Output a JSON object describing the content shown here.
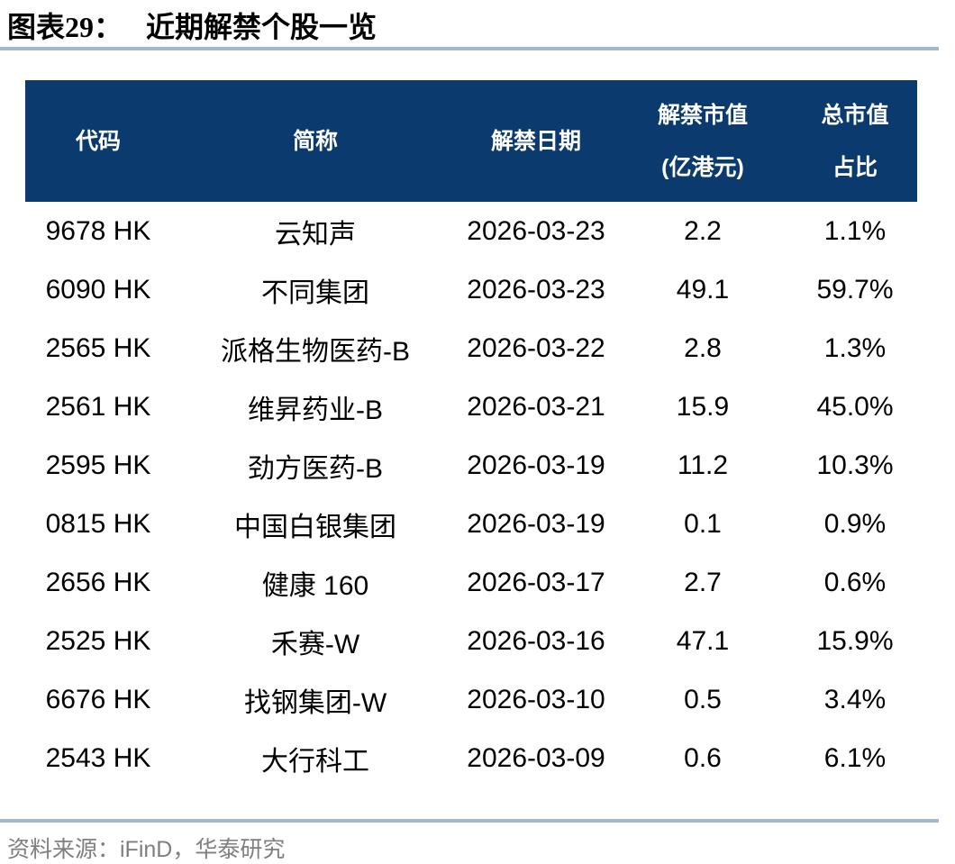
{
  "figure": {
    "label": "图表29：",
    "title": "近期解禁个股一览"
  },
  "table": {
    "columns": [
      {
        "key": "code",
        "label": "代码"
      },
      {
        "key": "name",
        "label": "简称"
      },
      {
        "key": "unlock_date",
        "label": "解禁日期"
      },
      {
        "key": "unlock_value",
        "label": "解禁市值",
        "label2": "(亿港元)"
      },
      {
        "key": "mktcap_pct",
        "label": "总市值",
        "label2": "占比"
      }
    ],
    "rows": [
      [
        "9678 HK",
        "云知声",
        "2026-03-23",
        "2.2",
        "1.1%"
      ],
      [
        "6090 HK",
        "不同集团",
        "2026-03-23",
        "49.1",
        "59.7%"
      ],
      [
        "2565 HK",
        "派格生物医药-B",
        "2026-03-22",
        "2.8",
        "1.3%"
      ],
      [
        "2561 HK",
        "维昇药业-B",
        "2026-03-21",
        "15.9",
        "45.0%"
      ],
      [
        "2595 HK",
        "劲方医药-B",
        "2026-03-19",
        "11.2",
        "10.3%"
      ],
      [
        "0815 HK",
        "中国白银集团",
        "2026-03-19",
        "0.1",
        "0.9%"
      ],
      [
        "2656 HK",
        "健康 160",
        "2026-03-17",
        "2.7",
        "0.6%"
      ],
      [
        "2525 HK",
        "禾赛-W",
        "2026-03-16",
        "47.1",
        "15.9%"
      ],
      [
        "6676 HK",
        "找钢集团-W",
        "2026-03-10",
        "0.5",
        "3.4%"
      ],
      [
        "2543 HK",
        "大行科工",
        "2026-03-09",
        "0.6",
        "6.1%"
      ]
    ]
  },
  "footer": {
    "source": "资料来源：iFinD，华泰研究"
  },
  "colors": {
    "header_bg": "#0b3a6e",
    "rule": "#a2b8d0",
    "source_text": "#7f7f7f",
    "body_text": "#000000"
  }
}
